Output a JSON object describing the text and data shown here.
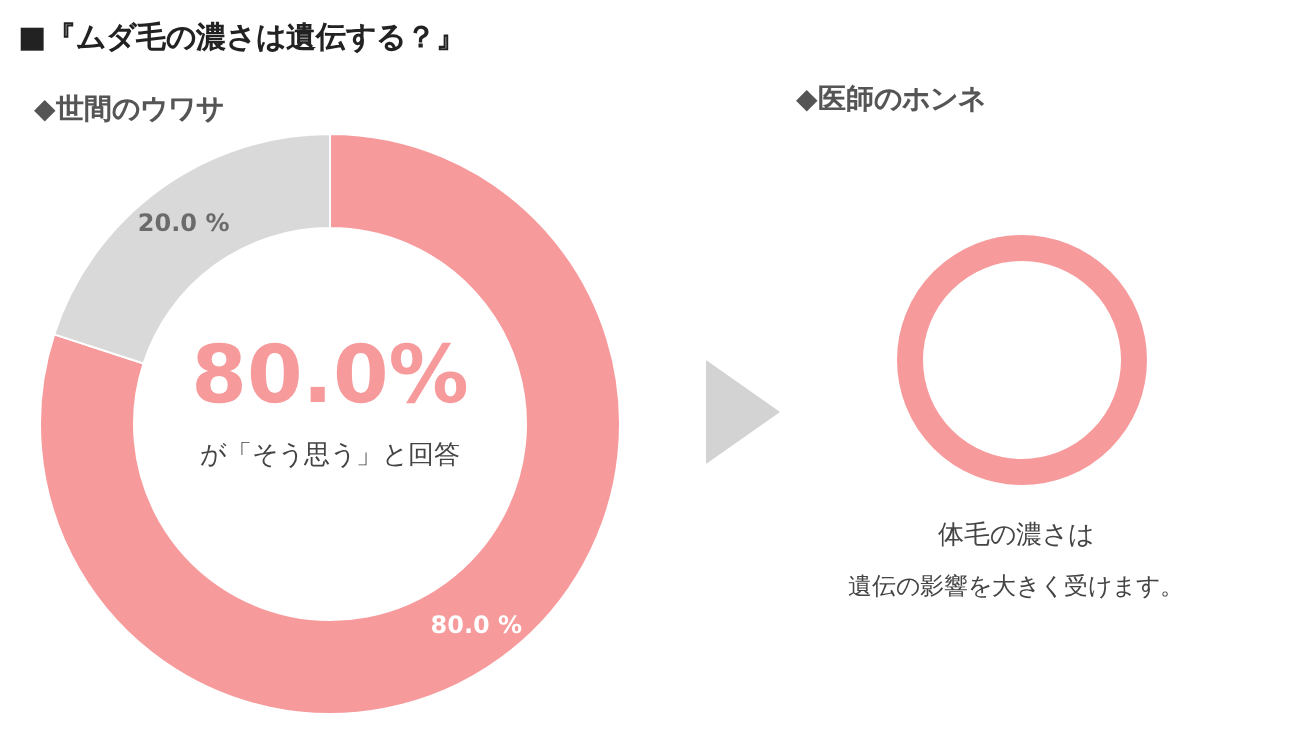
{
  "chart_data": {
    "type": "donut",
    "title": "■『ムダ毛の濃さは遺伝する？』",
    "subtitle": "◆世間のウワサ",
    "categories": [
      null,
      null
    ],
    "values": [
      80,
      20
    ],
    "colors": [
      "#f79a9c",
      "#d9d9d9"
    ],
    "value_labels": [
      "80.0 %",
      "20.0 %"
    ],
    "annotations": [
      "80.0%",
      "が「そう思う」と回答",
      "◆医師のホンネ",
      "体毛の濃さは",
      "遺伝の影響を大きく受けます。"
    ]
  }
}
